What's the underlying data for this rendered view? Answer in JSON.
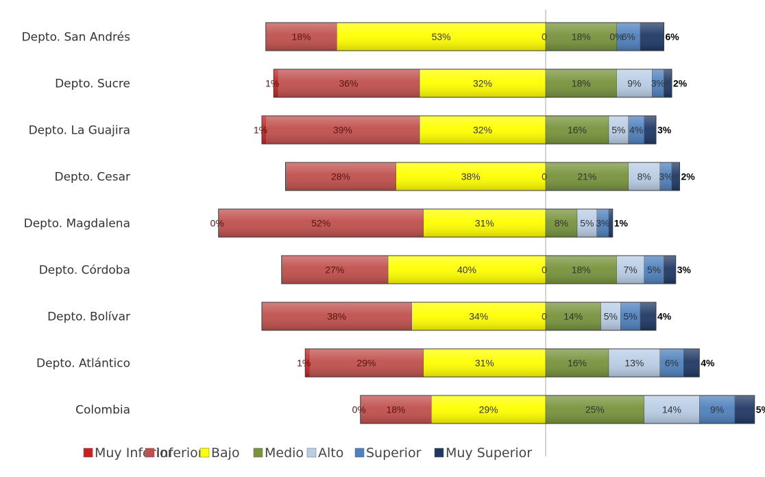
{
  "chart_data": {
    "type": "bar",
    "orientation": "horizontal",
    "stacked": "diverging",
    "categories": [
      "Depto. San Andrés",
      "Depto. Sucre",
      "Depto. La Guajira",
      "Depto. Cesar",
      "Depto. Magdalena",
      "Depto. Córdoba",
      "Depto. Bolívar",
      "Depto. Atlántico",
      "Colombia"
    ],
    "series": [
      {
        "name": "Muy Inferior",
        "color": "#cc1f1f",
        "side": "left",
        "values": [
          0,
          1,
          1,
          0,
          0,
          0,
          0,
          1,
          0
        ],
        "labels": [
          "",
          "1%",
          "1%",
          "",
          "0%",
          "",
          "",
          "1%",
          "0%"
        ]
      },
      {
        "name": "Inferior",
        "color": "#c0504d",
        "side": "left",
        "values": [
          18,
          36,
          39,
          28,
          52,
          27,
          38,
          29,
          18
        ],
        "labels": [
          "18%",
          "36%",
          "39%",
          "28%",
          "52%",
          "27%",
          "38%",
          "29%",
          "18%"
        ]
      },
      {
        "name": "Bajo",
        "color": "#ffff00",
        "side": "left",
        "values": [
          53,
          32,
          32,
          38,
          31,
          40,
          34,
          31,
          29
        ],
        "labels": [
          "53%",
          "32%",
          "32%",
          "38%",
          "31%",
          "40%",
          "34%",
          "31%",
          "29%"
        ]
      },
      {
        "name": "Medio",
        "color": "#77933c",
        "side": "right",
        "values": [
          18,
          18,
          16,
          21,
          8,
          18,
          14,
          16,
          25
        ],
        "labels": [
          "18%",
          "18%",
          "16%",
          "21%",
          "8%",
          "18%",
          "14%",
          "16%",
          "25%"
        ]
      },
      {
        "name": "Alto",
        "color": "#b9cde5",
        "side": "right",
        "values": [
          0,
          9,
          5,
          8,
          5,
          7,
          5,
          13,
          14
        ],
        "labels": [
          "0%",
          "9%",
          "5%",
          "8%",
          "5%",
          "7%",
          "5%",
          "13%",
          "14%"
        ]
      },
      {
        "name": "Superior",
        "color": "#4f81bd",
        "side": "right",
        "values": [
          6,
          3,
          4,
          3,
          3,
          5,
          5,
          6,
          9
        ],
        "labels": [
          "6%",
          "3%",
          "4%",
          "3%",
          "3%",
          "5%",
          "5%",
          "6%",
          "9%"
        ]
      },
      {
        "name": "Muy Superior",
        "color": "#1f3864",
        "side": "right",
        "values": [
          6,
          2,
          3,
          2,
          1,
          3,
          4,
          4,
          5
        ],
        "labels": [
          "6%",
          "2%",
          "3%",
          "2%",
          "1%",
          "3%",
          "4%",
          "4%",
          "5%"
        ]
      }
    ],
    "zero_labels": [
      "0",
      "",
      "",
      "0",
      "",
      "0",
      "0",
      "",
      ""
    ],
    "xlabel": "",
    "ylabel": "",
    "grid": false,
    "legend": "bottom"
  }
}
